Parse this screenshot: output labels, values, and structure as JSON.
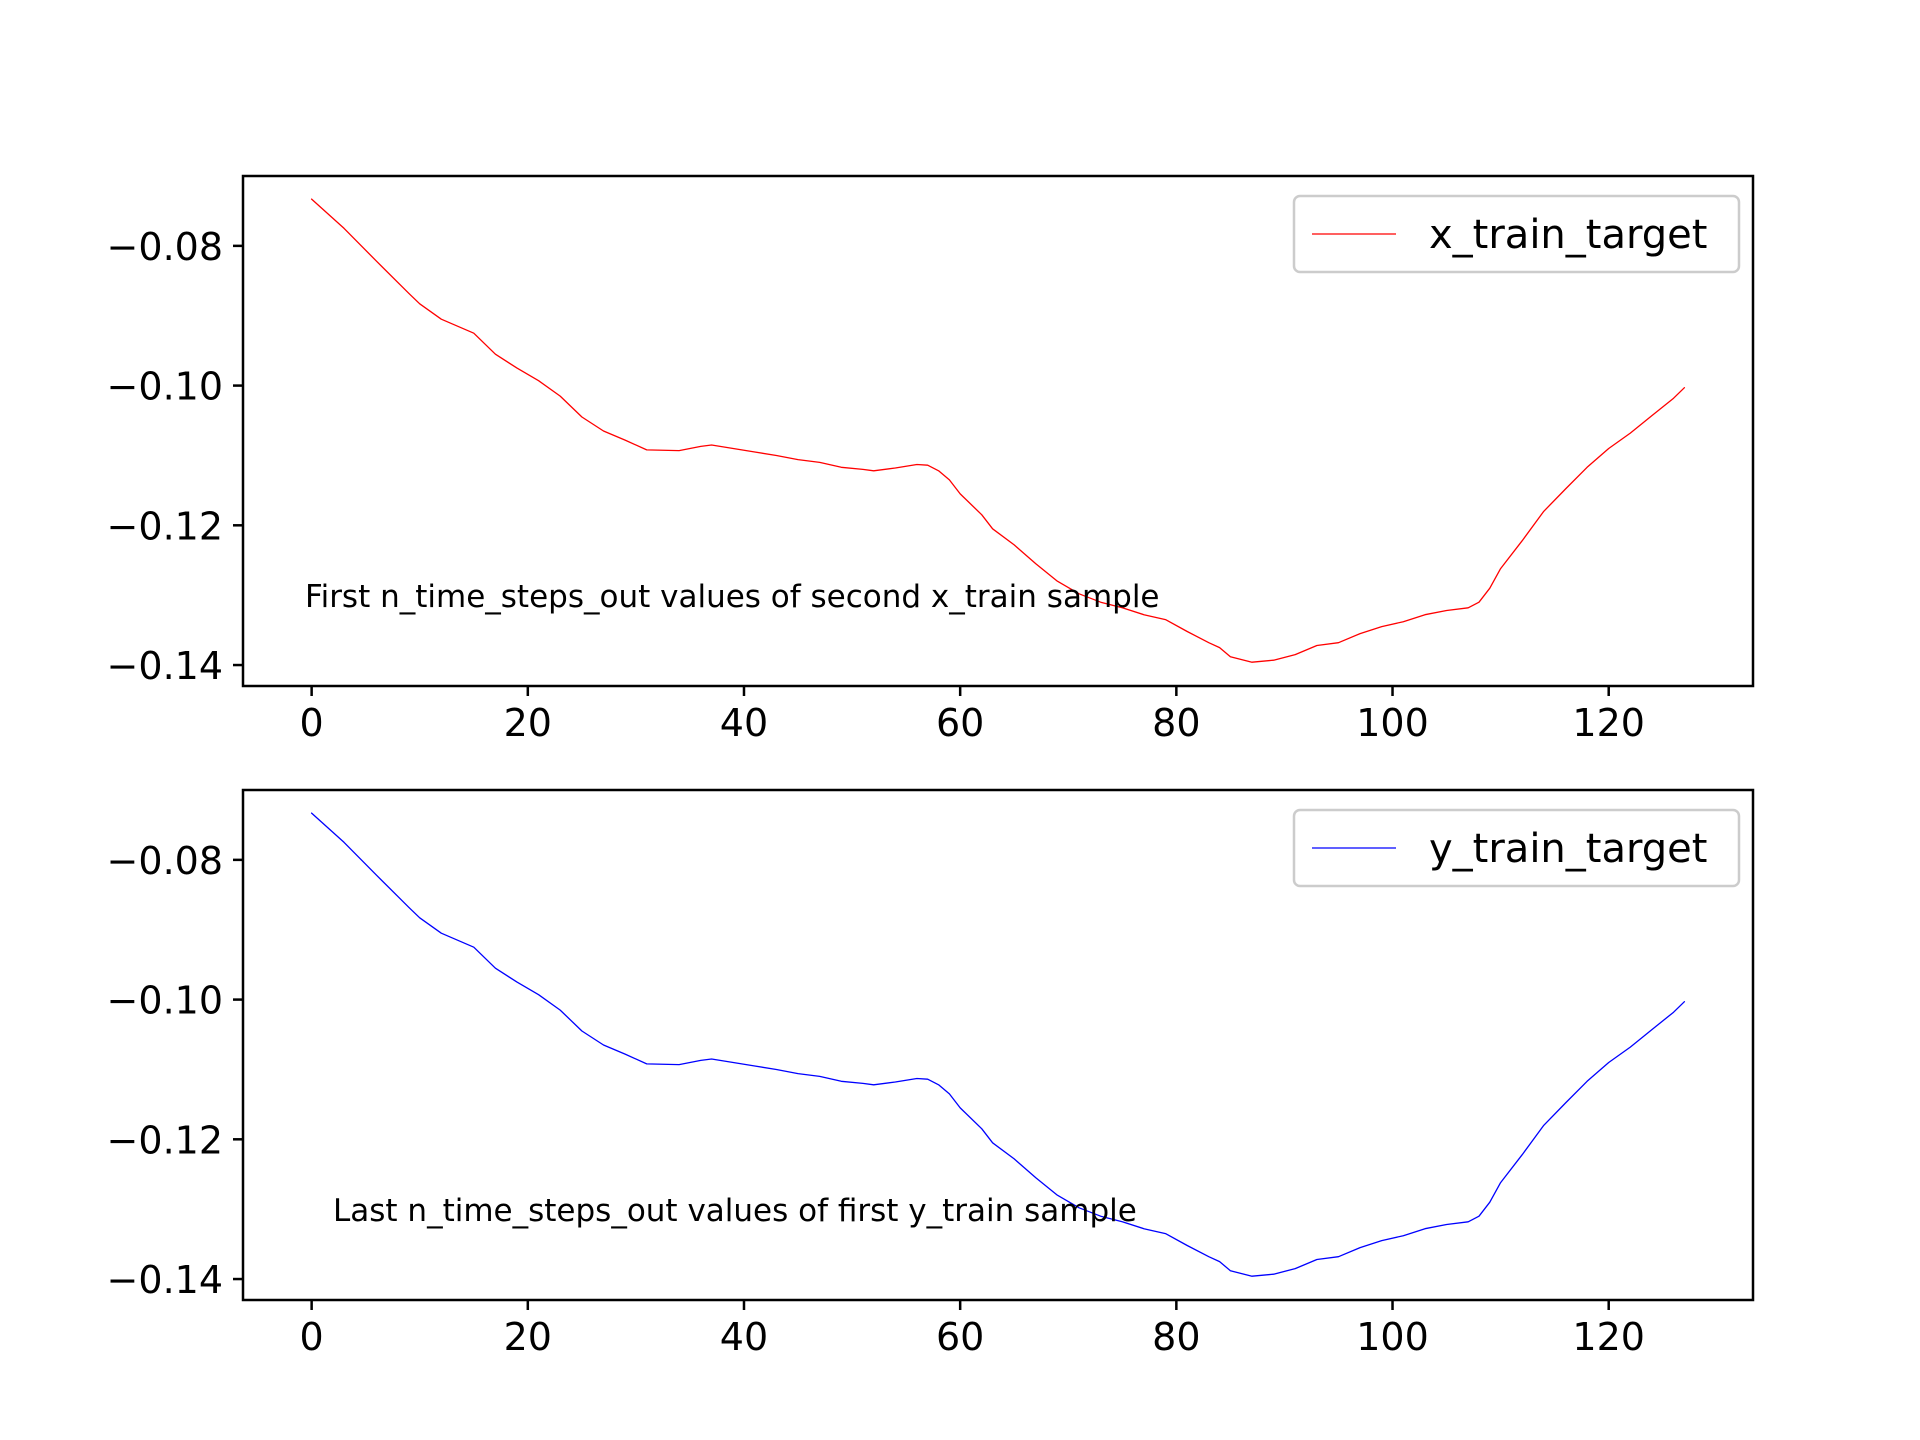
{
  "chart_data": [
    {
      "type": "line",
      "annotation": "First n_time_steps_out values of second x_train sample",
      "xlim": [
        -6.35,
        133.35
      ],
      "ylim": [
        -0.143,
        -0.07
      ],
      "xticks": [
        0,
        20,
        40,
        60,
        80,
        100,
        120
      ],
      "xtick_labels": [
        "0",
        "20",
        "40",
        "60",
        "80",
        "100",
        "120"
      ],
      "yticks": [
        -0.08,
        -0.1,
        -0.12,
        -0.14
      ],
      "ytick_labels": [
        "−0.08",
        "−0.10",
        "−0.12",
        "−0.14"
      ],
      "grid": false,
      "legend_position": "top-right",
      "series": [
        {
          "name": "x_train_target",
          "color": "#ff0000",
          "x": [
            0,
            3,
            6,
            9,
            10,
            12,
            15,
            17,
            19,
            21,
            23,
            25,
            27,
            29,
            31,
            34,
            36,
            37,
            39,
            41,
            43,
            45,
            47,
            49,
            51,
            52,
            54,
            56,
            57,
            58,
            59,
            60,
            62,
            63,
            65,
            67,
            69,
            71,
            73,
            75,
            77,
            79,
            81,
            83,
            84,
            85,
            87,
            89,
            91,
            93,
            95,
            97,
            99,
            101,
            103,
            105,
            107,
            108,
            109,
            110,
            112,
            114,
            116,
            118,
            120,
            122,
            124,
            126,
            127
          ],
          "y": [
            -0.0733,
            -0.0775,
            -0.0822,
            -0.0868,
            -0.0883,
            -0.0905,
            -0.0925,
            -0.0955,
            -0.0975,
            -0.0993,
            -0.1015,
            -0.1045,
            -0.1065,
            -0.1078,
            -0.1092,
            -0.1093,
            -0.1087,
            -0.1085,
            -0.109,
            -0.1095,
            -0.11,
            -0.1106,
            -0.111,
            -0.1117,
            -0.112,
            -0.1122,
            -0.1118,
            -0.1113,
            -0.1114,
            -0.1122,
            -0.1135,
            -0.1155,
            -0.1185,
            -0.1205,
            -0.1228,
            -0.1255,
            -0.128,
            -0.1298,
            -0.131,
            -0.1318,
            -0.1328,
            -0.1335,
            -0.1352,
            -0.1368,
            -0.1375,
            -0.1388,
            -0.1396,
            -0.1393,
            -0.1385,
            -0.1372,
            -0.1368,
            -0.1355,
            -0.1345,
            -0.1338,
            -0.1328,
            -0.1322,
            -0.1318,
            -0.131,
            -0.129,
            -0.1262,
            -0.1222,
            -0.118,
            -0.1148,
            -0.1117,
            -0.109,
            -0.1068,
            -0.1043,
            -0.1018,
            -0.1003
          ]
        }
      ]
    },
    {
      "type": "line",
      "annotation": "Last n_time_steps_out values of first y_train sample",
      "xlim": [
        -6.35,
        133.35
      ],
      "ylim": [
        -0.143,
        -0.07
      ],
      "xticks": [
        0,
        20,
        40,
        60,
        80,
        100,
        120
      ],
      "xtick_labels": [
        "0",
        "20",
        "40",
        "60",
        "80",
        "100",
        "120"
      ],
      "yticks": [
        -0.08,
        -0.1,
        -0.12,
        -0.14
      ],
      "ytick_labels": [
        "−0.08",
        "−0.10",
        "−0.12",
        "−0.14"
      ],
      "grid": false,
      "legend_position": "top-right",
      "series": [
        {
          "name": "y_train_target",
          "color": "#0000ff",
          "x": [
            0,
            3,
            6,
            9,
            10,
            12,
            15,
            17,
            19,
            21,
            23,
            25,
            27,
            29,
            31,
            34,
            36,
            37,
            39,
            41,
            43,
            45,
            47,
            49,
            51,
            52,
            54,
            56,
            57,
            58,
            59,
            60,
            62,
            63,
            65,
            67,
            69,
            71,
            73,
            75,
            77,
            79,
            81,
            83,
            84,
            85,
            87,
            89,
            91,
            93,
            95,
            97,
            99,
            101,
            103,
            105,
            107,
            108,
            109,
            110,
            112,
            114,
            116,
            118,
            120,
            122,
            124,
            126,
            127
          ],
          "y": [
            -0.0733,
            -0.0775,
            -0.0822,
            -0.0868,
            -0.0883,
            -0.0905,
            -0.0925,
            -0.0955,
            -0.0975,
            -0.0993,
            -0.1015,
            -0.1045,
            -0.1065,
            -0.1078,
            -0.1092,
            -0.1093,
            -0.1087,
            -0.1085,
            -0.109,
            -0.1095,
            -0.11,
            -0.1106,
            -0.111,
            -0.1117,
            -0.112,
            -0.1122,
            -0.1118,
            -0.1113,
            -0.1114,
            -0.1122,
            -0.1135,
            -0.1155,
            -0.1185,
            -0.1205,
            -0.1228,
            -0.1255,
            -0.128,
            -0.1298,
            -0.131,
            -0.1318,
            -0.1328,
            -0.1335,
            -0.1352,
            -0.1368,
            -0.1375,
            -0.1388,
            -0.1396,
            -0.1393,
            -0.1385,
            -0.1372,
            -0.1368,
            -0.1355,
            -0.1345,
            -0.1338,
            -0.1328,
            -0.1322,
            -0.1318,
            -0.131,
            -0.129,
            -0.1262,
            -0.1222,
            -0.118,
            -0.1148,
            -0.1117,
            -0.109,
            -0.1068,
            -0.1043,
            -0.1018,
            -0.1003
          ]
        }
      ]
    }
  ]
}
